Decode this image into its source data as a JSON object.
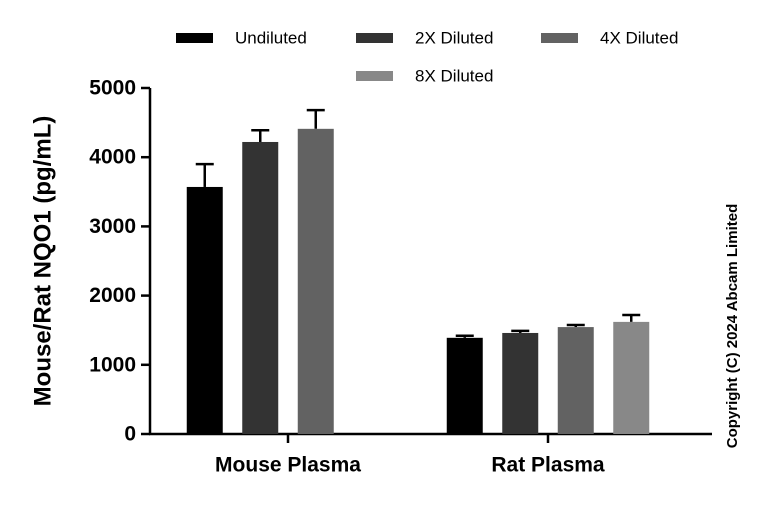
{
  "chart_data": {
    "type": "bar",
    "y_label": "Mouse/Rat NQO1 (pg/mL)",
    "annotation": "Copyright (C) 2024 Abcam Limited",
    "categories": [
      "Mouse Plasma",
      "Rat Plasma"
    ],
    "series": [
      {
        "name": "Undiluted",
        "color": "#000000",
        "values": [
          3570,
          1390
        ],
        "errors": [
          330,
          30
        ]
      },
      {
        "name": "2X Diluted",
        "color": "#333333",
        "values": [
          4220,
          1460
        ],
        "errors": [
          170,
          30
        ]
      },
      {
        "name": "4X Diluted",
        "color": "#626262",
        "values": [
          4410,
          1545
        ],
        "errors": [
          270,
          30
        ]
      },
      {
        "name": "8X Diluted",
        "color": "#888888",
        "values": [
          null,
          1620
        ],
        "errors": [
          null,
          100
        ]
      }
    ],
    "ylim": [
      0,
      5000
    ],
    "yticks": [
      0,
      1000,
      2000,
      3000,
      4000,
      5000
    ]
  }
}
